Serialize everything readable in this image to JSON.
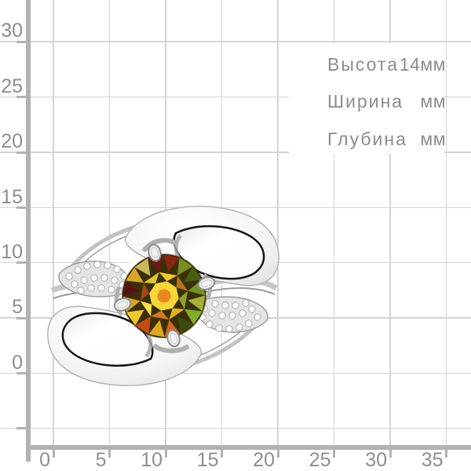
{
  "page": {
    "background": "#ffffff"
  },
  "grid": {
    "x_axis_labels": [
      "0",
      "5",
      "10",
      "15",
      "20",
      "25",
      "30",
      "35"
    ],
    "y_axis_labels": [
      "30",
      "25",
      "20",
      "15",
      "10",
      "5",
      "0"
    ],
    "line_color": "#d4d4d4",
    "axis_color": "#b2b2b2",
    "label_color": "#8e8e8e"
  },
  "measurements": {
    "rows": [
      {
        "label": "Высота",
        "value": "14мм"
      },
      {
        "label": "Ширина",
        "value": "мм"
      },
      {
        "label": "Глубина",
        "value": "мм"
      }
    ],
    "text_color": "#8c8c8c"
  },
  "ring": {
    "description": "silver bypass ring with round multicolor gemstone and pave diamonds",
    "metal_color": "#f2f2f2",
    "metal_edge_color": "#b3b3b3",
    "opening_outline_color": "#161616",
    "diamond_color": "#ffffff",
    "diamond_edge_color": "#ababab",
    "stone": {
      "base_color": "#3a3006",
      "rim_color": "rgba(50,35,5,0.55)",
      "outer_facets": [
        "#6c1a14",
        "#8a2410",
        "#7c8f24",
        "#46600f",
        "#6f9421",
        "#a5b23a",
        "#7fae2a",
        "#3c4a0e",
        "#d2691c",
        "#e0a81f",
        "#c64d12",
        "#efc62e",
        "#dba81e",
        "#571310",
        "#d9a62a",
        "#c9b85a"
      ],
      "inner_facets": [
        "#f2c92e",
        "#b4731a",
        "#8fa32c",
        "#e8b322",
        "#d2781e",
        "#ffdf4d",
        "#a0481a",
        "#e3c22f"
      ],
      "table_color": "#f7d63d",
      "core_color": "#e8891e"
    }
  }
}
